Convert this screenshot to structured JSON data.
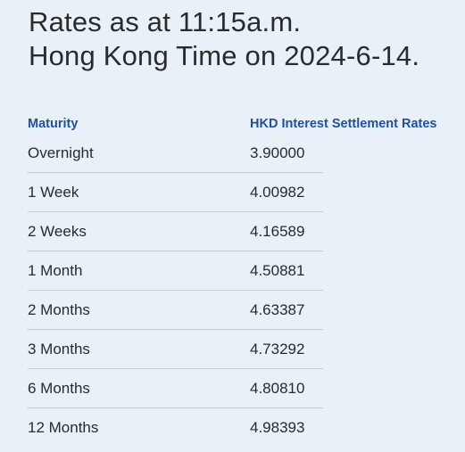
{
  "heading": {
    "line1": "Rates as at 11:15a.m.",
    "line2": "Hong Kong Time on 2024-6-14."
  },
  "table": {
    "columns": [
      "Maturity",
      "HKD Interest Settlement Rates"
    ],
    "rows": [
      {
        "maturity": "Overnight",
        "rate": "3.90000"
      },
      {
        "maturity": "1 Week",
        "rate": "4.00982"
      },
      {
        "maturity": "2 Weeks",
        "rate": "4.16589"
      },
      {
        "maturity": "1 Month",
        "rate": "4.50881"
      },
      {
        "maturity": "2 Months",
        "rate": "4.63387"
      },
      {
        "maturity": "3 Months",
        "rate": "4.73292"
      },
      {
        "maturity": "6 Months",
        "rate": "4.80810"
      },
      {
        "maturity": "12 Months",
        "rate": "4.98393"
      }
    ]
  },
  "colors": {
    "background": "#e8f1f8",
    "header_text": "#1f4f9e",
    "divider": "#b8cfe0"
  }
}
